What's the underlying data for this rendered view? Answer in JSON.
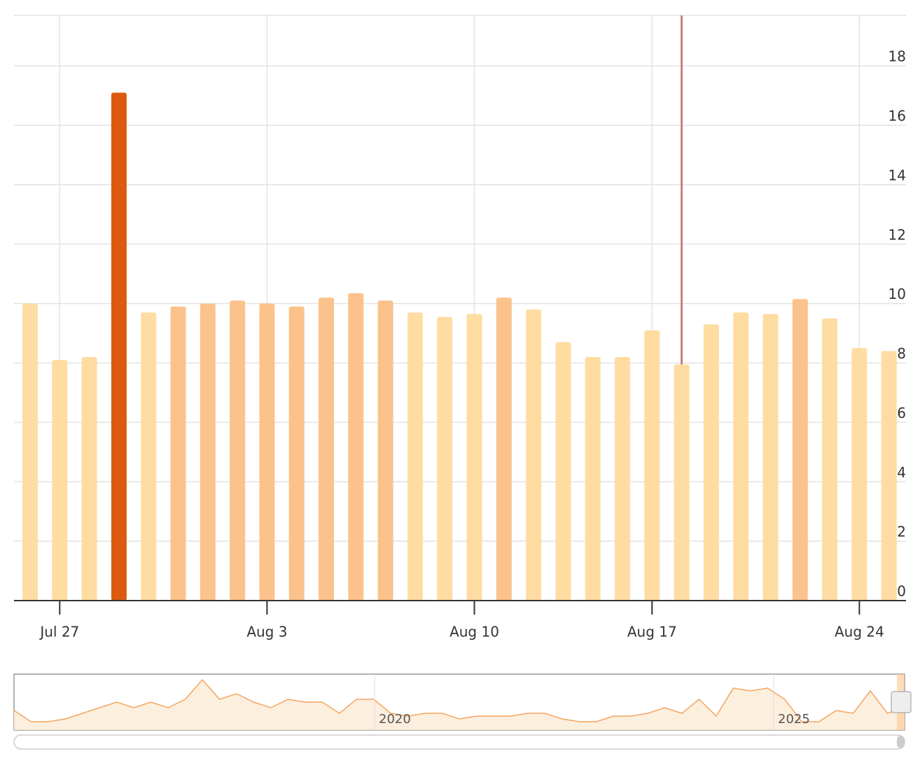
{
  "chart_data": {
    "type": "bar",
    "categories": [
      null,
      "Jul 27",
      null,
      null,
      null,
      null,
      null,
      null,
      "Aug 3",
      null,
      null,
      null,
      null,
      null,
      null,
      "Aug 10",
      null,
      null,
      null,
      null,
      null,
      "Aug 17",
      null,
      null,
      null,
      null,
      null,
      null,
      "Aug 24",
      null
    ],
    "values": [
      10,
      8.1,
      8.2,
      17.1,
      9.7,
      9.9,
      10,
      10.1,
      10,
      9.9,
      10.2,
      10.35,
      10.1,
      9.7,
      9.55,
      9.65,
      10.2,
      9.8,
      8.7,
      8.2,
      8.2,
      9.1,
      7.95,
      9.3,
      9.7,
      9.65,
      10.15,
      9.5,
      8.5,
      8.4
    ],
    "colors": [
      "#fedca2",
      "#fedca2",
      "#fedca2",
      "#db5a10",
      "#fedca2",
      "#fcc28c",
      "#fcc28c",
      "#fcc28c",
      "#fcc28c",
      "#fcc28c",
      "#fcc28c",
      "#fcc28c",
      "#fcc28c",
      "#fedca2",
      "#fedca2",
      "#fedca2",
      "#fcc28c",
      "#fedca2",
      "#fedca2",
      "#fedca2",
      "#fedca2",
      "#fedca2",
      "#fedca2",
      "#fedca2",
      "#fedca2",
      "#fedca2",
      "#fcc28c",
      "#fedca2",
      "#fedca2",
      "#fedca2"
    ],
    "ylim": [
      0,
      19.7
    ],
    "yticks": [
      0,
      2,
      4,
      6,
      8,
      10,
      12,
      14,
      16,
      18
    ],
    "grid": true,
    "navigator": {
      "values": [
        7,
        3,
        3,
        4,
        6,
        8,
        10,
        8,
        10,
        8,
        11,
        18,
        11,
        13,
        10,
        8,
        11,
        10,
        10,
        6,
        11,
        11,
        6,
        5,
        6,
        6,
        4,
        5,
        5,
        5,
        6,
        6,
        4,
        3,
        3,
        5,
        5,
        6,
        8,
        6,
        11,
        5,
        15,
        14,
        15,
        11,
        3,
        3,
        7,
        6,
        14,
        6,
        8
      ],
      "ylim": [
        0,
        20
      ],
      "labels": [
        "2020",
        "2025"
      ]
    }
  }
}
